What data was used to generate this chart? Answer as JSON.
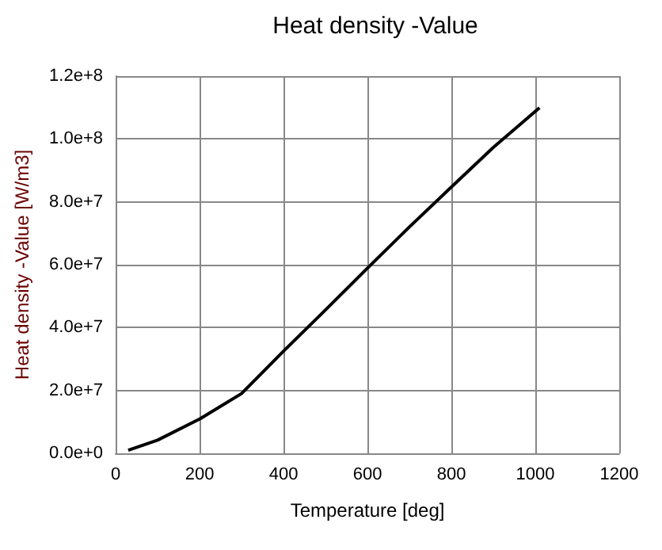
{
  "chart_data": {
    "type": "line",
    "title": "Heat density -Value",
    "xlabel": "Temperature [deg]",
    "ylabel": "Heat density -Value [W/m3]",
    "x": [
      30,
      100,
      200,
      300,
      400,
      500,
      600,
      700,
      800,
      900,
      1010
    ],
    "series": [
      {
        "color": "#000000",
        "values": [
          1000000,
          4200000,
          10900000,
          19000000,
          32500000,
          45600000,
          58900000,
          72000000,
          84700000,
          97300000,
          109900000
        ]
      }
    ],
    "xlim": [
      0,
      1200
    ],
    "xticks": [
      0,
      200,
      400,
      600,
      800,
      1000,
      1200
    ],
    "ylim": [
      0,
      120000000
    ],
    "yticks": [
      {
        "value": 0,
        "label": "0.0e+0"
      },
      {
        "value": 20000000,
        "label": "2.0e+7"
      },
      {
        "value": 40000000,
        "label": "4.0e+7"
      },
      {
        "value": 60000000,
        "label": "6.0e+7"
      },
      {
        "value": 80000000,
        "label": "8.0e+7"
      },
      {
        "value": 100000000,
        "label": "1.0e+8"
      },
      {
        "value": 120000000,
        "label": "1.2e+8"
      }
    ],
    "grid": true,
    "marker": "none",
    "line_style": "solid"
  }
}
